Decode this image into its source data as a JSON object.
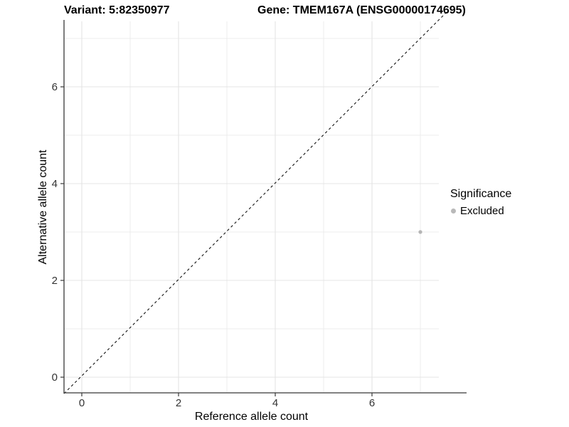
{
  "chart_data": {
    "type": "scatter",
    "title_left": "Variant: 5:82350977",
    "title_right": "Gene: TMEM167A (ENSG00000174695)",
    "xlabel": "Reference allele count",
    "ylabel": "Alternative allele count",
    "xlim": [
      -0.35,
      7.35
    ],
    "ylim": [
      -0.35,
      7.35
    ],
    "x_ticks": [
      0,
      2,
      4,
      6
    ],
    "y_ticks": [
      0,
      2,
      4,
      6
    ],
    "grid": {
      "major_x": [
        0,
        2,
        4,
        6
      ],
      "minor_x": [
        1,
        3,
        5,
        7
      ],
      "major_y": [
        0,
        2,
        4,
        6
      ],
      "minor_y": [
        1,
        3,
        5,
        7
      ]
    },
    "reference_line": {
      "type": "identity",
      "equation": "y = x",
      "style": "dashed",
      "color": "#111111"
    },
    "series": [
      {
        "name": "Excluded",
        "color": "#b5b5b5",
        "points": [
          {
            "x": 7,
            "y": 3
          }
        ]
      }
    ],
    "legend": {
      "title": "Significance",
      "position": "right",
      "items": [
        {
          "label": "Excluded",
          "color": "#b9b9b9"
        }
      ]
    }
  },
  "colors": {
    "background": "#ffffff",
    "grid_major": "#e4e4e4",
    "grid_minor": "#ececec",
    "axis_line": "#383838",
    "tick_label": "#333333"
  }
}
